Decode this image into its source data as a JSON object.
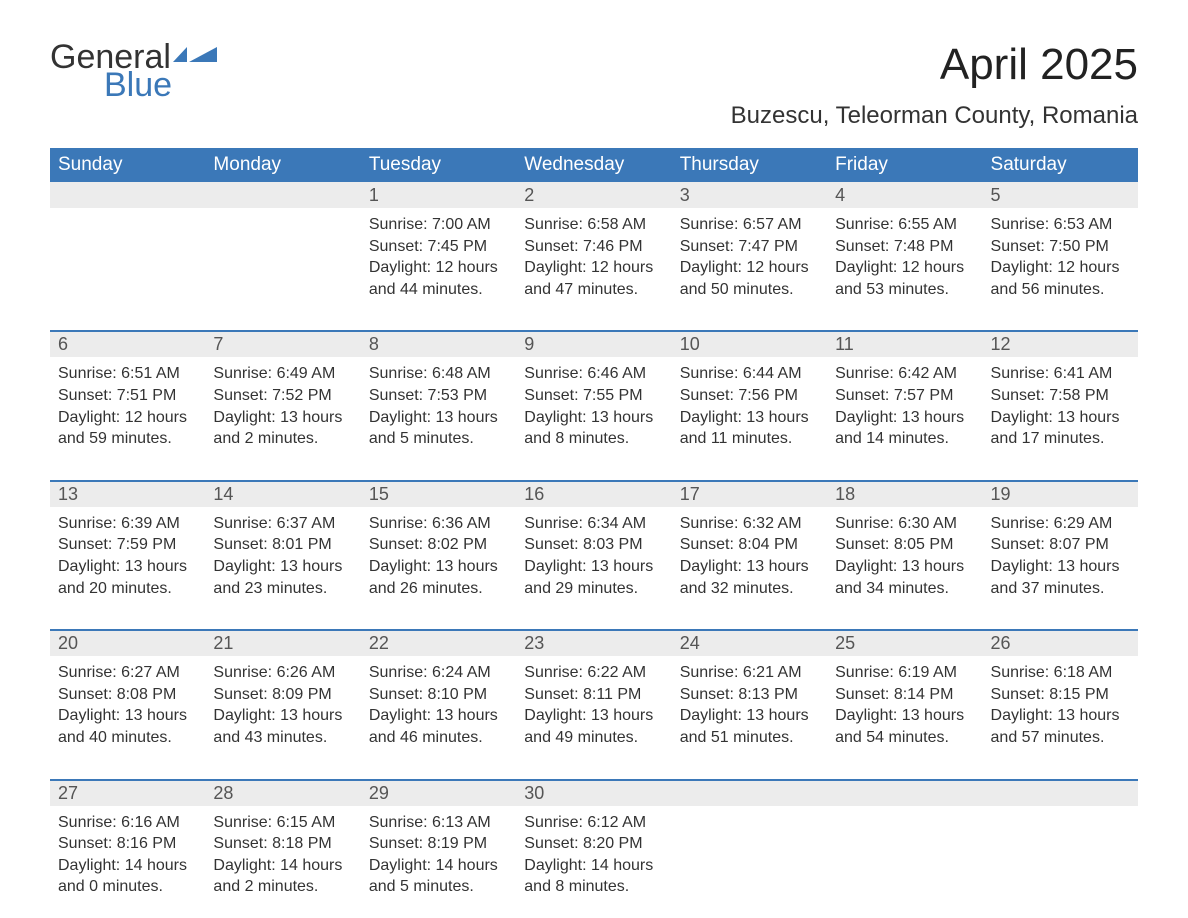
{
  "logo": {
    "word1": "General",
    "word2": "Blue",
    "flag_color": "#3b78b8"
  },
  "title": "April 2025",
  "location": "Buzescu, Teleorman County, Romania",
  "colors": {
    "header_bg": "#3b78b8",
    "header_text": "#ffffff",
    "daynum_bg": "#ececec",
    "row_border": "#3b78b8",
    "body_text": "#333333"
  },
  "weekdays": [
    "Sunday",
    "Monday",
    "Tuesday",
    "Wednesday",
    "Thursday",
    "Friday",
    "Saturday"
  ],
  "weeks": [
    [
      null,
      null,
      {
        "n": "1",
        "sr": "7:00 AM",
        "ss": "7:45 PM",
        "dl": "12 hours and 44 minutes."
      },
      {
        "n": "2",
        "sr": "6:58 AM",
        "ss": "7:46 PM",
        "dl": "12 hours and 47 minutes."
      },
      {
        "n": "3",
        "sr": "6:57 AM",
        "ss": "7:47 PM",
        "dl": "12 hours and 50 minutes."
      },
      {
        "n": "4",
        "sr": "6:55 AM",
        "ss": "7:48 PM",
        "dl": "12 hours and 53 minutes."
      },
      {
        "n": "5",
        "sr": "6:53 AM",
        "ss": "7:50 PM",
        "dl": "12 hours and 56 minutes."
      }
    ],
    [
      {
        "n": "6",
        "sr": "6:51 AM",
        "ss": "7:51 PM",
        "dl": "12 hours and 59 minutes."
      },
      {
        "n": "7",
        "sr": "6:49 AM",
        "ss": "7:52 PM",
        "dl": "13 hours and 2 minutes."
      },
      {
        "n": "8",
        "sr": "6:48 AM",
        "ss": "7:53 PM",
        "dl": "13 hours and 5 minutes."
      },
      {
        "n": "9",
        "sr": "6:46 AM",
        "ss": "7:55 PM",
        "dl": "13 hours and 8 minutes."
      },
      {
        "n": "10",
        "sr": "6:44 AM",
        "ss": "7:56 PM",
        "dl": "13 hours and 11 minutes."
      },
      {
        "n": "11",
        "sr": "6:42 AM",
        "ss": "7:57 PM",
        "dl": "13 hours and 14 minutes."
      },
      {
        "n": "12",
        "sr": "6:41 AM",
        "ss": "7:58 PM",
        "dl": "13 hours and 17 minutes."
      }
    ],
    [
      {
        "n": "13",
        "sr": "6:39 AM",
        "ss": "7:59 PM",
        "dl": "13 hours and 20 minutes."
      },
      {
        "n": "14",
        "sr": "6:37 AM",
        "ss": "8:01 PM",
        "dl": "13 hours and 23 minutes."
      },
      {
        "n": "15",
        "sr": "6:36 AM",
        "ss": "8:02 PM",
        "dl": "13 hours and 26 minutes."
      },
      {
        "n": "16",
        "sr": "6:34 AM",
        "ss": "8:03 PM",
        "dl": "13 hours and 29 minutes."
      },
      {
        "n": "17",
        "sr": "6:32 AM",
        "ss": "8:04 PM",
        "dl": "13 hours and 32 minutes."
      },
      {
        "n": "18",
        "sr": "6:30 AM",
        "ss": "8:05 PM",
        "dl": "13 hours and 34 minutes."
      },
      {
        "n": "19",
        "sr": "6:29 AM",
        "ss": "8:07 PM",
        "dl": "13 hours and 37 minutes."
      }
    ],
    [
      {
        "n": "20",
        "sr": "6:27 AM",
        "ss": "8:08 PM",
        "dl": "13 hours and 40 minutes."
      },
      {
        "n": "21",
        "sr": "6:26 AM",
        "ss": "8:09 PM",
        "dl": "13 hours and 43 minutes."
      },
      {
        "n": "22",
        "sr": "6:24 AM",
        "ss": "8:10 PM",
        "dl": "13 hours and 46 minutes."
      },
      {
        "n": "23",
        "sr": "6:22 AM",
        "ss": "8:11 PM",
        "dl": "13 hours and 49 minutes."
      },
      {
        "n": "24",
        "sr": "6:21 AM",
        "ss": "8:13 PM",
        "dl": "13 hours and 51 minutes."
      },
      {
        "n": "25",
        "sr": "6:19 AM",
        "ss": "8:14 PM",
        "dl": "13 hours and 54 minutes."
      },
      {
        "n": "26",
        "sr": "6:18 AM",
        "ss": "8:15 PM",
        "dl": "13 hours and 57 minutes."
      }
    ],
    [
      {
        "n": "27",
        "sr": "6:16 AM",
        "ss": "8:16 PM",
        "dl": "14 hours and 0 minutes."
      },
      {
        "n": "28",
        "sr": "6:15 AM",
        "ss": "8:18 PM",
        "dl": "14 hours and 2 minutes."
      },
      {
        "n": "29",
        "sr": "6:13 AM",
        "ss": "8:19 PM",
        "dl": "14 hours and 5 minutes."
      },
      {
        "n": "30",
        "sr": "6:12 AM",
        "ss": "8:20 PM",
        "dl": "14 hours and 8 minutes."
      },
      null,
      null,
      null
    ]
  ],
  "labels": {
    "sunrise": "Sunrise:",
    "sunset": "Sunset:",
    "daylight": "Daylight:"
  }
}
